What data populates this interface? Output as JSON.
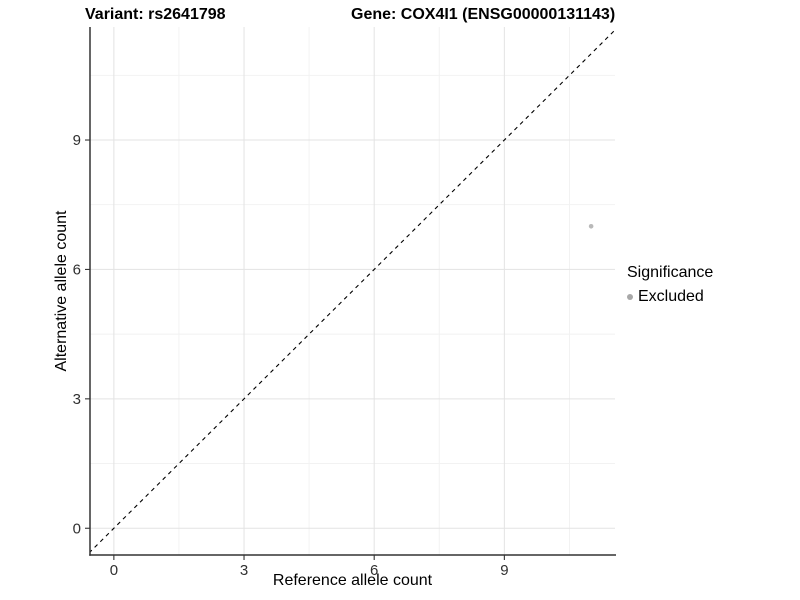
{
  "title": {
    "left": "Variant: rs2641798",
    "right": "Gene: COX4I1 (ENSG00000131143)"
  },
  "axes": {
    "x": {
      "label": "Reference allele count"
    },
    "y": {
      "label": "Alternative allele count"
    }
  },
  "legend": {
    "title": "Significance",
    "items": [
      {
        "label": "Excluded",
        "color": "#a8a8a8"
      }
    ]
  },
  "chart_data": {
    "type": "scatter",
    "title": "Variant: rs2641798 / Gene: COX4I1 (ENSG00000131143)",
    "xlabel": "Reference allele count",
    "ylabel": "Alternative allele count",
    "xlim": [
      -0.55,
      11.55
    ],
    "ylim": [
      -0.62,
      11.62
    ],
    "x_major_ticks": [
      0,
      3,
      6,
      9
    ],
    "y_major_ticks": [
      0,
      3,
      6,
      9
    ],
    "x_minor_ticks": [
      1.5,
      4.5,
      7.5,
      10.5
    ],
    "y_minor_ticks": [
      1.5,
      4.5,
      7.5,
      10.5
    ],
    "grid": true,
    "legend_position": "right",
    "series": [
      {
        "name": "Excluded",
        "color": "#b9b9b9",
        "points": [
          {
            "x": 11,
            "y": 7
          }
        ]
      }
    ],
    "reference_line": {
      "type": "identity y=x",
      "style": "dashed",
      "color": "#000000"
    }
  },
  "colors": {
    "background": "#ffffff",
    "grid_major": "#e3e3e3",
    "grid_minor": "#f1f1f1",
    "axis_line": "#333333",
    "tick_label": "#303030",
    "point": "#b9b9b9",
    "legend_point": "#a8a8a8",
    "dashed_line": "#000000"
  }
}
